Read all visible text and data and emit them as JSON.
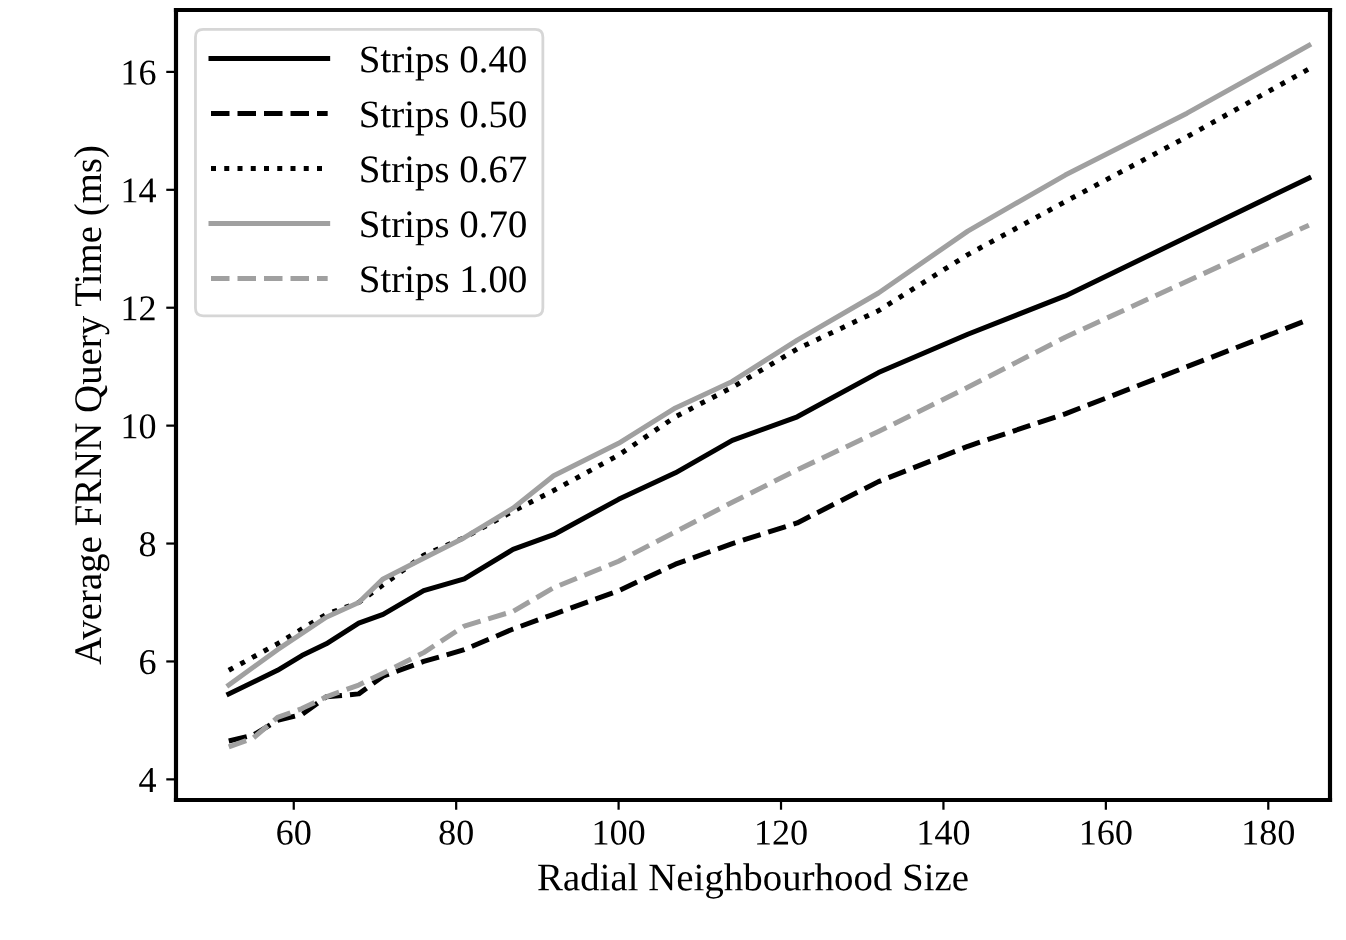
{
  "chart_data": {
    "type": "line",
    "xlabel": "Radial Neighbourhood Size",
    "ylabel": "Average FRNN Query Time (ms)",
    "xlim": [
      45.5,
      187.6
    ],
    "ylim": [
      3.65,
      17.05
    ],
    "xticks": [
      60,
      80,
      100,
      120,
      140,
      160,
      180
    ],
    "yticks": [
      4,
      6,
      8,
      10,
      12,
      14,
      16
    ],
    "grid": false,
    "legend": "top left",
    "series": [
      {
        "name": "Strips 0.40",
        "color": "#000000",
        "line_style": "solid",
        "x": [
          52,
          58,
          61,
          64,
          68,
          71,
          76,
          81,
          87,
          92,
          100,
          107,
          114,
          122,
          132,
          143,
          155,
          170,
          185
        ],
        "values": [
          5.45,
          5.85,
          6.1,
          6.3,
          6.65,
          6.8,
          7.2,
          7.4,
          7.9,
          8.15,
          8.75,
          9.2,
          9.75,
          10.15,
          10.9,
          11.55,
          12.2,
          13.2,
          14.2
        ]
      },
      {
        "name": "Strips 0.50",
        "color": "#000000",
        "line_style": "dashed",
        "x": [
          52,
          55,
          58,
          61,
          64,
          68,
          71,
          76,
          81,
          87,
          92,
          100,
          107,
          114,
          122,
          132,
          143,
          155,
          170,
          185
        ],
        "values": [
          4.65,
          4.75,
          5.0,
          5.1,
          5.4,
          5.45,
          5.75,
          6.0,
          6.2,
          6.55,
          6.8,
          7.2,
          7.65,
          8.0,
          8.35,
          9.05,
          9.65,
          10.2,
          11.0,
          11.8
        ]
      },
      {
        "name": "Strips 0.67",
        "color": "#000000",
        "line_style": "dotted",
        "x": [
          52,
          58,
          64,
          68,
          71,
          76,
          81,
          87,
          92,
          100,
          107,
          114,
          122,
          132,
          143,
          155,
          170,
          185
        ],
        "values": [
          5.85,
          6.3,
          6.8,
          7.0,
          7.3,
          7.8,
          8.1,
          8.55,
          8.9,
          9.5,
          10.15,
          10.65,
          11.3,
          11.95,
          12.9,
          13.8,
          14.9,
          16.05
        ]
      },
      {
        "name": "Strips 0.70",
        "color": "#a0a0a0",
        "line_style": "solid",
        "x": [
          52,
          58,
          64,
          68,
          71,
          76,
          81,
          87,
          92,
          100,
          107,
          114,
          122,
          132,
          143,
          155,
          170,
          185
        ],
        "values": [
          5.6,
          6.2,
          6.75,
          7.0,
          7.4,
          7.75,
          8.1,
          8.6,
          9.15,
          9.7,
          10.3,
          10.75,
          11.45,
          12.25,
          13.3,
          14.25,
          15.3,
          16.45
        ]
      },
      {
        "name": "Strips 1.00",
        "color": "#a0a0a0",
        "line_style": "dashed",
        "x": [
          52,
          55,
          58,
          61,
          64,
          68,
          71,
          76,
          81,
          87,
          92,
          100,
          107,
          114,
          122,
          132,
          143,
          155,
          170,
          185
        ],
        "values": [
          4.55,
          4.7,
          5.05,
          5.2,
          5.4,
          5.6,
          5.8,
          6.15,
          6.6,
          6.85,
          7.25,
          7.7,
          8.2,
          8.7,
          9.25,
          9.9,
          10.65,
          11.5,
          12.45,
          13.4
        ]
      }
    ]
  }
}
